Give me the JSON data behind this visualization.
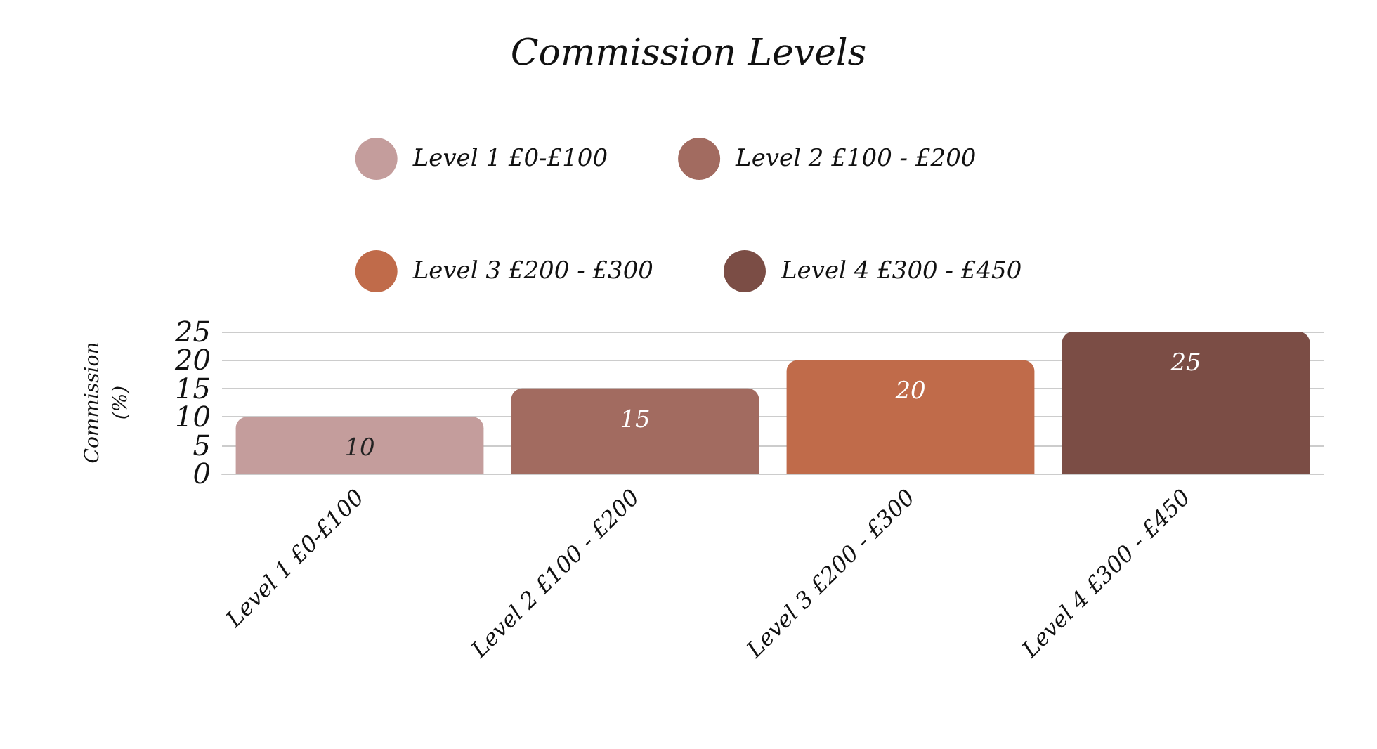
{
  "chart_data": {
    "type": "bar",
    "title": "Commission Levels",
    "ylabel": "Commission\n(%)",
    "categories": [
      "Level 1 £0-£100",
      "Level 2 £100 - £200",
      "Level 3 £200 - £300",
      "Level 4 £300 - £450"
    ],
    "stacked": true,
    "series": [
      {
        "name": "Level 1 £0-£100",
        "color": "#c49d9c",
        "values": [
          10,
          null,
          null,
          null
        ]
      },
      {
        "name": "Level 2 £100 - £200",
        "color": "#a26b60",
        "values": [
          null,
          15,
          null,
          null
        ]
      },
      {
        "name": "Level 3 £200 - £300",
        "color": "#c06b4a",
        "values": [
          null,
          null,
          20,
          null
        ]
      },
      {
        "name": "Level 4 £300 - £450",
        "color": "#7b4d45",
        "values": [
          null,
          null,
          null,
          25
        ]
      }
    ],
    "ylim": [
      0,
      25
    ],
    "yticks": [
      0,
      5,
      10,
      15,
      20,
      25
    ],
    "grid": "y",
    "legend": "top",
    "data_labels": true
  }
}
